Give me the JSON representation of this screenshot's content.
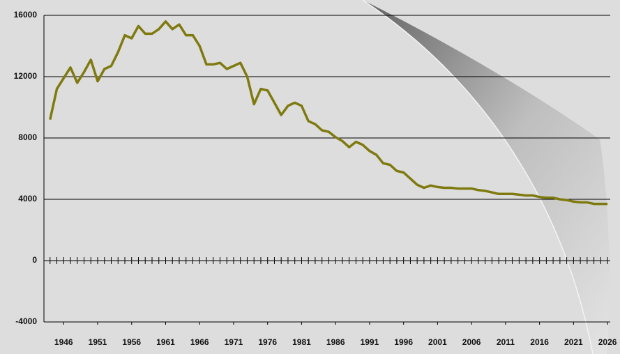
{
  "chart_data": {
    "type": "line",
    "x": [
      1944,
      1945,
      1946,
      1947,
      1948,
      1949,
      1950,
      1951,
      1952,
      1953,
      1954,
      1955,
      1956,
      1957,
      1958,
      1959,
      1960,
      1961,
      1962,
      1963,
      1964,
      1965,
      1966,
      1967,
      1968,
      1969,
      1970,
      1971,
      1972,
      1973,
      1974,
      1975,
      1976,
      1977,
      1978,
      1979,
      1980,
      1981,
      1982,
      1983,
      1984,
      1985,
      1986,
      1987,
      1988,
      1989,
      1990,
      1991,
      1992,
      1993,
      1994,
      1995,
      1996,
      1997,
      1998,
      1999,
      2000,
      2001,
      2002,
      2003,
      2004,
      2005,
      2006,
      2007,
      2008,
      2009,
      2010,
      2011,
      2012,
      2013,
      2014,
      2015,
      2016,
      2017,
      2018,
      2019,
      2020,
      2021,
      2022,
      2023,
      2024,
      2025,
      2026
    ],
    "series": [
      {
        "color": "#7f7a0f",
        "values": [
          9200,
          11200,
          11900,
          12600,
          11600,
          12300,
          13100,
          11700,
          12500,
          12700,
          13600,
          14700,
          14500,
          15300,
          14800,
          14800,
          15100,
          15600,
          15100,
          15400,
          14700,
          14700,
          14000,
          12800,
          12800,
          12900,
          12500,
          12700,
          12900,
          12000,
          10200,
          11200,
          11100,
          10300,
          9500,
          10100,
          10300,
          10100,
          9100,
          8900,
          8500,
          8400,
          8050,
          7800,
          7400,
          7750,
          7550,
          7150,
          6900,
          6350,
          6250,
          5850,
          5750,
          5350,
          4950,
          4750,
          4900,
          4800,
          4750,
          4750,
          4700,
          4700,
          4700,
          4600,
          4550,
          4450,
          4350,
          4350,
          4350,
          4300,
          4250,
          4250,
          4150,
          4100,
          4100,
          4000,
          3950,
          3850,
          3800,
          3800,
          3700,
          3700,
          3700
        ]
      }
    ],
    "xlim": [
      1943.1,
      2026.4
    ],
    "xticks": [
      1946,
      1951,
      1956,
      1961,
      1966,
      1971,
      1976,
      1981,
      1986,
      1991,
      1996,
      2001,
      2006,
      2011,
      2016,
      2021,
      2026
    ],
    "ylim": [
      -4000,
      16000
    ],
    "yticks": [
      -4000,
      0,
      4000,
      8000,
      12000,
      16000
    ],
    "grid": true
  }
}
